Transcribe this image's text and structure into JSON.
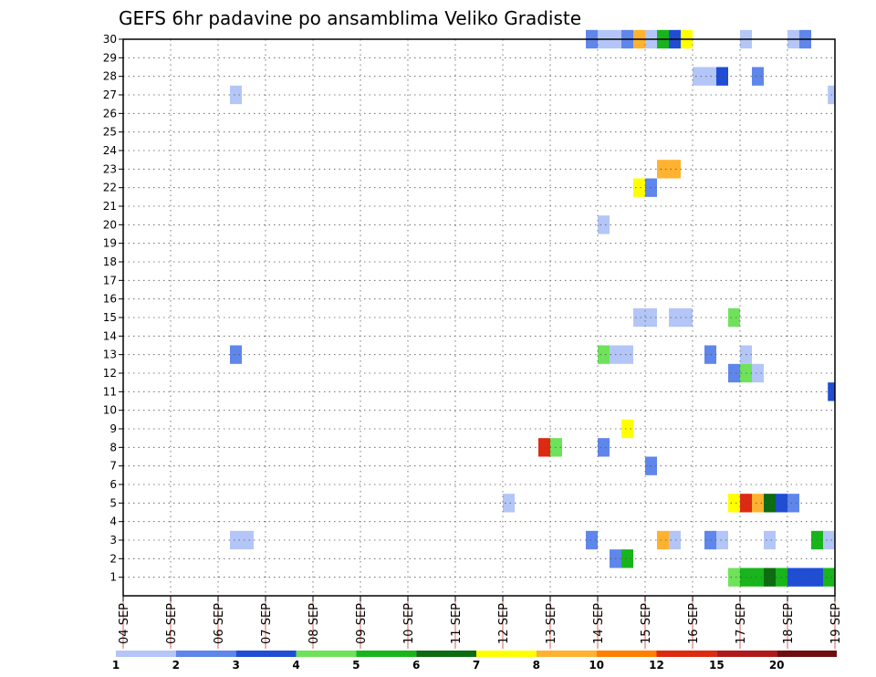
{
  "chart_data": {
    "type": "heatmap",
    "title": "GEFS 6hr padavine po ansamblima Veliko Gradiste",
    "xlabel": "",
    "ylabel": "",
    "x_ticks": [
      "04 SEP",
      "05 SEP",
      "06 SEP",
      "07 SEP",
      "08 SEP",
      "09 SEP",
      "10 SEP",
      "11 SEP",
      "12 SEP",
      "13 SEP",
      "14 SEP",
      "15 SEP",
      "16 SEP",
      "17 SEP",
      "18 SEP",
      "19 SEP"
    ],
    "x_unit": "day index from 04 SEP 00Z (0.25 = 6 hours)",
    "xlim": [
      0,
      15
    ],
    "ylim": [
      0,
      30
    ],
    "y_ticks": [
      1,
      2,
      3,
      4,
      5,
      6,
      7,
      8,
      9,
      10,
      11,
      12,
      13,
      14,
      15,
      16,
      17,
      18,
      19,
      20,
      21,
      22,
      23,
      24,
      25,
      26,
      27,
      28,
      29,
      30
    ],
    "grid": true,
    "color_scale": {
      "colors": [
        "#b3c6f7",
        "#5f86ea",
        "#1f4ed4",
        "#6ee25a",
        "#17b51b",
        "#0d6b10",
        "#ffff00",
        "#ffb22f",
        "#ff7f00",
        "#dd2a10",
        "#b01a1a",
        "#6e0e0e"
      ],
      "labels": [
        "1",
        "2",
        "3",
        "4",
        "5",
        "6",
        "7",
        "8",
        "10",
        "12",
        "15",
        "20"
      ]
    },
    "cells": [
      {
        "member": 30,
        "start": 9.75,
        "end": 10.0,
        "color": "#5f86ea"
      },
      {
        "member": 30,
        "start": 10.0,
        "end": 10.5,
        "color": "#b3c6f7"
      },
      {
        "member": 30,
        "start": 10.5,
        "end": 10.75,
        "color": "#5f86ea"
      },
      {
        "member": 30,
        "start": 10.75,
        "end": 11.0,
        "color": "#ffb22f"
      },
      {
        "member": 30,
        "start": 11.0,
        "end": 11.25,
        "color": "#b3c6f7"
      },
      {
        "member": 30,
        "start": 11.25,
        "end": 11.5,
        "color": "#17b51b"
      },
      {
        "member": 30,
        "start": 11.5,
        "end": 11.75,
        "color": "#1f4ed4"
      },
      {
        "member": 30,
        "start": 11.75,
        "end": 12.0,
        "color": "#ffff00"
      },
      {
        "member": 30,
        "start": 13.0,
        "end": 13.25,
        "color": "#b3c6f7"
      },
      {
        "member": 30,
        "start": 14.0,
        "end": 14.25,
        "color": "#b3c6f7"
      },
      {
        "member": 30,
        "start": 14.25,
        "end": 14.5,
        "color": "#5f86ea"
      },
      {
        "member": 28,
        "start": 12.0,
        "end": 12.5,
        "color": "#b3c6f7"
      },
      {
        "member": 28,
        "start": 12.5,
        "end": 12.75,
        "color": "#1f4ed4"
      },
      {
        "member": 28,
        "start": 13.25,
        "end": 13.5,
        "color": "#5f86ea"
      },
      {
        "member": 27,
        "start": 2.25,
        "end": 2.5,
        "color": "#b3c6f7"
      },
      {
        "member": 27,
        "start": 14.85,
        "end": 15.0,
        "color": "#b3c6f7"
      },
      {
        "member": 23,
        "start": 11.25,
        "end": 11.75,
        "color": "#ffb22f"
      },
      {
        "member": 22,
        "start": 10.75,
        "end": 11.0,
        "color": "#ffff00"
      },
      {
        "member": 22,
        "start": 11.0,
        "end": 11.25,
        "color": "#5f86ea"
      },
      {
        "member": 20,
        "start": 10.0,
        "end": 10.25,
        "color": "#b3c6f7"
      },
      {
        "member": 15,
        "start": 10.75,
        "end": 11.25,
        "color": "#b3c6f7"
      },
      {
        "member": 15,
        "start": 11.5,
        "end": 12.0,
        "color": "#b3c6f7"
      },
      {
        "member": 15,
        "start": 12.75,
        "end": 13.0,
        "color": "#6ee25a"
      },
      {
        "member": 13,
        "start": 2.25,
        "end": 2.5,
        "color": "#5f86ea"
      },
      {
        "member": 13,
        "start": 10.0,
        "end": 10.25,
        "color": "#6ee25a"
      },
      {
        "member": 13,
        "start": 10.25,
        "end": 10.75,
        "color": "#b3c6f7"
      },
      {
        "member": 13,
        "start": 12.25,
        "end": 12.5,
        "color": "#5f86ea"
      },
      {
        "member": 13,
        "start": 13.0,
        "end": 13.25,
        "color": "#b3c6f7"
      },
      {
        "member": 12,
        "start": 12.75,
        "end": 13.0,
        "color": "#5f86ea"
      },
      {
        "member": 12,
        "start": 13.0,
        "end": 13.25,
        "color": "#6ee25a"
      },
      {
        "member": 12,
        "start": 13.25,
        "end": 13.5,
        "color": "#b3c6f7"
      },
      {
        "member": 11,
        "start": 14.85,
        "end": 15.0,
        "color": "#1f4ed4"
      },
      {
        "member": 9,
        "start": 10.5,
        "end": 10.75,
        "color": "#ffff00"
      },
      {
        "member": 8,
        "start": 8.75,
        "end": 9.0,
        "color": "#dd2a10"
      },
      {
        "member": 8,
        "start": 9.0,
        "end": 9.25,
        "color": "#6ee25a"
      },
      {
        "member": 8,
        "start": 10.0,
        "end": 10.25,
        "color": "#5f86ea"
      },
      {
        "member": 7,
        "start": 11.0,
        "end": 11.25,
        "color": "#5f86ea"
      },
      {
        "member": 5,
        "start": 8.0,
        "end": 8.25,
        "color": "#b3c6f7"
      },
      {
        "member": 5,
        "start": 12.75,
        "end": 13.0,
        "color": "#ffff00"
      },
      {
        "member": 5,
        "start": 13.0,
        "end": 13.25,
        "color": "#dd2a10"
      },
      {
        "member": 5,
        "start": 13.25,
        "end": 13.5,
        "color": "#ffb22f"
      },
      {
        "member": 5,
        "start": 13.5,
        "end": 13.75,
        "color": "#0d6b10"
      },
      {
        "member": 5,
        "start": 13.75,
        "end": 14.0,
        "color": "#1f4ed4"
      },
      {
        "member": 5,
        "start": 14.0,
        "end": 14.25,
        "color": "#5f86ea"
      },
      {
        "member": 3,
        "start": 2.25,
        "end": 2.75,
        "color": "#b3c6f7"
      },
      {
        "member": 3,
        "start": 9.75,
        "end": 10.0,
        "color": "#5f86ea"
      },
      {
        "member": 3,
        "start": 11.25,
        "end": 11.5,
        "color": "#ffb22f"
      },
      {
        "member": 3,
        "start": 11.5,
        "end": 11.75,
        "color": "#b3c6f7"
      },
      {
        "member": 3,
        "start": 12.25,
        "end": 12.5,
        "color": "#5f86ea"
      },
      {
        "member": 3,
        "start": 12.5,
        "end": 12.75,
        "color": "#b3c6f7"
      },
      {
        "member": 3,
        "start": 13.5,
        "end": 13.75,
        "color": "#b3c6f7"
      },
      {
        "member": 3,
        "start": 14.5,
        "end": 14.75,
        "color": "#17b51b"
      },
      {
        "member": 3,
        "start": 14.75,
        "end": 15.0,
        "color": "#b3c6f7"
      },
      {
        "member": 2,
        "start": 10.25,
        "end": 10.5,
        "color": "#5f86ea"
      },
      {
        "member": 2,
        "start": 10.5,
        "end": 10.75,
        "color": "#17b51b"
      },
      {
        "member": 1,
        "start": 12.75,
        "end": 13.0,
        "color": "#6ee25a"
      },
      {
        "member": 1,
        "start": 13.0,
        "end": 13.5,
        "color": "#17b51b"
      },
      {
        "member": 1,
        "start": 13.5,
        "end": 13.75,
        "color": "#0d6b10"
      },
      {
        "member": 1,
        "start": 13.75,
        "end": 14.0,
        "color": "#17b51b"
      },
      {
        "member": 1,
        "start": 14.0,
        "end": 14.75,
        "color": "#1f4ed4"
      },
      {
        "member": 1,
        "start": 14.75,
        "end": 15.0,
        "color": "#17b51b"
      }
    ]
  }
}
